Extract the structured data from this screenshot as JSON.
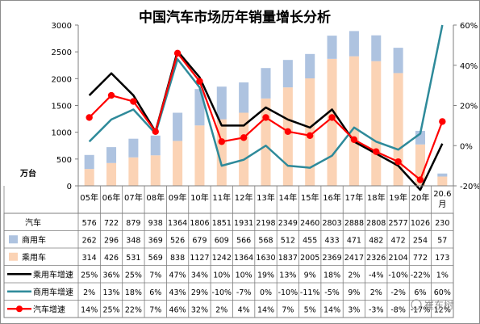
{
  "chart_data": {
    "type": "bar",
    "title": "中国汽车市场历年销量增长分析",
    "y_unit": "万台",
    "categories": [
      "05年",
      "06年",
      "07年",
      "08年",
      "09年",
      "10年",
      "11年",
      "12年",
      "13年",
      "14年",
      "15年",
      "16年",
      "17年",
      "18年",
      "19年",
      "20年",
      "20.6\n月"
    ],
    "ylim": [
      0,
      3000
    ],
    "yticks": [
      0,
      500,
      1000,
      1500,
      2000,
      2500,
      3000
    ],
    "y2lim": [
      -20,
      60
    ],
    "y2ticks": [
      "-20%",
      "0%",
      "20%",
      "40%",
      "60%"
    ],
    "series": [
      {
        "name": "汽车",
        "kind": "none",
        "values": [
          576,
          722,
          879,
          938,
          1364,
          1806,
          1851,
          1931,
          2198,
          2349,
          2460,
          2803,
          2888,
          2808,
          2577,
          1026,
          230
        ]
      },
      {
        "name": "商用车",
        "kind": "bar-top",
        "color": "#aec3e0",
        "values": [
          262,
          296,
          348,
          369,
          526,
          679,
          609,
          566,
          568,
          512,
          455,
          433,
          471,
          482,
          472,
          254,
          57
        ]
      },
      {
        "name": "乘用车",
        "kind": "bar-bottom",
        "color": "#fbd3b5",
        "values": [
          314,
          426,
          531,
          569,
          838,
          1127,
          1242,
          1364,
          1630,
          1837,
          2005,
          2369,
          2417,
          2326,
          2104,
          772,
          173
        ]
      },
      {
        "name": "乘用车增速",
        "kind": "line",
        "color": "#000000",
        "values": [
          25,
          36,
          25,
          7,
          47,
          34,
          10,
          10,
          19,
          13,
          9,
          18,
          2,
          -4,
          -10,
          -22,
          1
        ],
        "labels": [
          "25%",
          "36%",
          "25%",
          "7%",
          "47%",
          "34%",
          "10%",
          "10%",
          "19%",
          "13%",
          "9%",
          "18%",
          "2%",
          "-4%",
          "-10%",
          "-22%",
          "1%"
        ]
      },
      {
        "name": "商用车增速",
        "kind": "line",
        "color": "#2e8a9a",
        "values": [
          2,
          13,
          18,
          6,
          43,
          29,
          -10,
          -7,
          0,
          -10,
          -11,
          -5,
          9,
          2,
          -2,
          6,
          60
        ],
        "labels": [
          "2%",
          "13%",
          "18%",
          "6%",
          "43%",
          "29%",
          "-10%",
          "-7%",
          "0%",
          "-10%",
          "-11%",
          "-5%",
          "9%",
          "2%",
          "-2%",
          "6%",
          "60%"
        ]
      },
      {
        "name": "汽车增速",
        "kind": "line-marker",
        "color": "#ff0000",
        "values": [
          14,
          25,
          22,
          7,
          46,
          32,
          2,
          4,
          14,
          7,
          5,
          14,
          3,
          -3,
          -8,
          -17,
          12
        ],
        "labels": [
          "14%",
          "25%",
          "22%",
          "7%",
          "46%",
          "32%",
          "2%",
          "4%",
          "14%",
          "7%",
          "5%",
          "14%",
          "3%",
          "-3%",
          "-8%",
          "-17%",
          "12%"
        ]
      }
    ]
  },
  "watermark": "崔东树"
}
